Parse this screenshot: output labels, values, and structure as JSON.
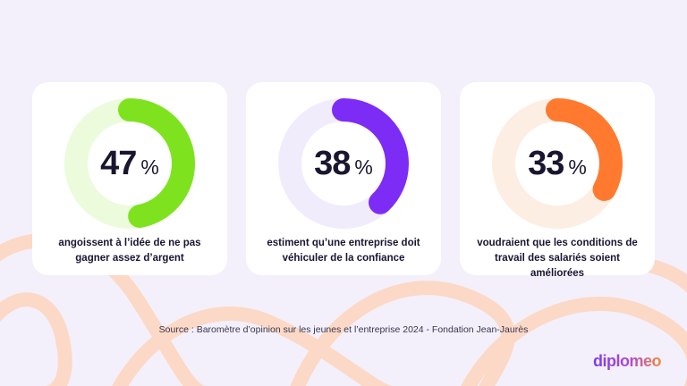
{
  "stats": [
    {
      "value": "47",
      "unit": "%",
      "fraction": 0.47,
      "caption_line1": "angoissent à l’idée de ne pas",
      "caption_line2": "gagner assez d’argent",
      "color": "#7ee31e",
      "track_color": "#ecfbdc"
    },
    {
      "value": "38",
      "unit": "%",
      "fraction": 0.38,
      "caption_line1": "estiment qu’une entreprise doit",
      "caption_line2": "véhiculer de la confiance",
      "color": "#7d2cf6",
      "track_color": "#f1ecfc"
    },
    {
      "value": "33",
      "unit": "%",
      "fraction": 0.33,
      "caption_line1": "voudraient que les conditions de",
      "caption_line2": "travail des salariés soient améliorées",
      "color": "#ff7a2e",
      "track_color": "#fdeee4"
    }
  ],
  "source": "Source : Baromètre d’opinion sur les jeunes et l’entreprise 2024 - Fondation Jean-Jaurès",
  "logo": "diplomeo",
  "colors": {
    "background": "#f3f0fb",
    "curve": "#fbd9c6",
    "text": "#1a1530"
  }
}
